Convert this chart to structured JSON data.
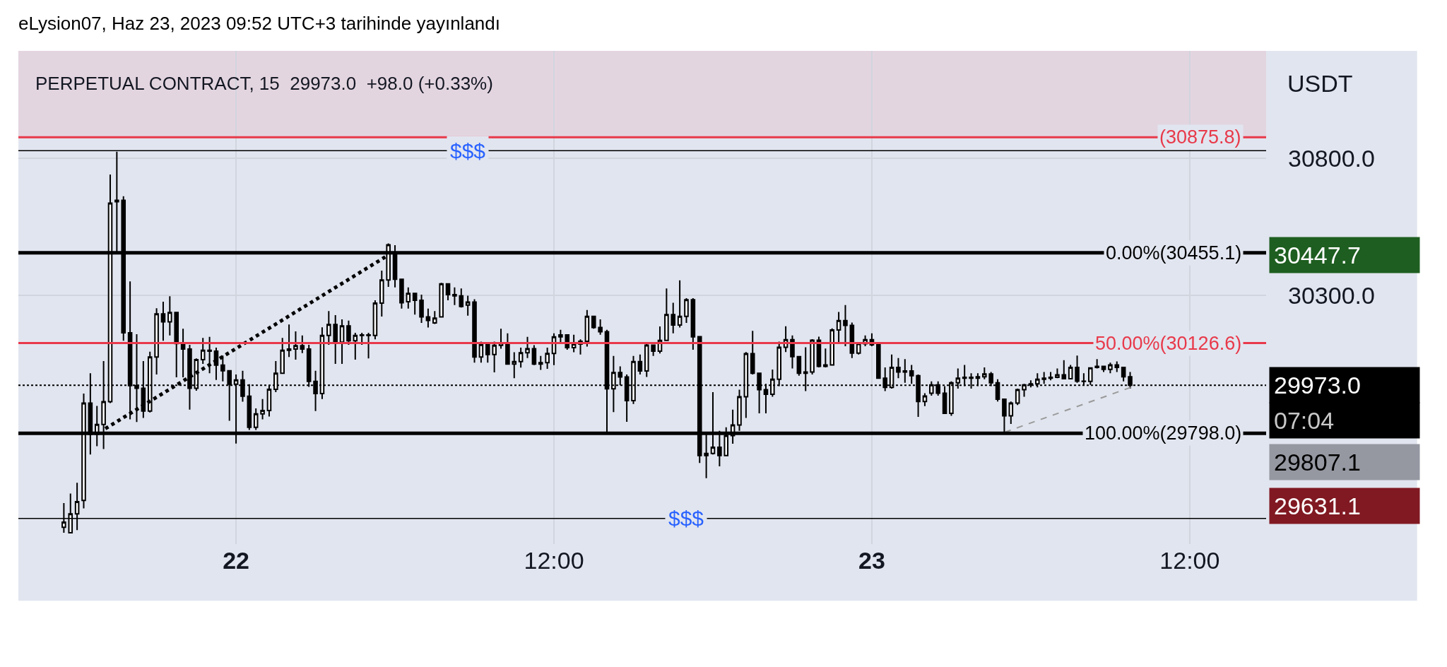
{
  "chart_data": {
    "type": "candlestick",
    "title": "PERPETUAL CONTRACT, 15  29973.0  +98.0 (+0.33%)",
    "ylabel": "USDT",
    "annotations": [
      "eLysion07, Haz 23, 2023 09:52 UTC+3 tarihinde yayınlandı",
      "30447.7",
      "07:04",
      "29807.1",
      "29631.1"
    ],
    "xlim": [
      "2023-06-21T15:47",
      "2023-06-23T14:53"
    ],
    "xticks": [
      {
        "value": "2023-06-22",
        "label": "22"
      },
      {
        "value": "2023-06-22T12:00",
        "label": "12:00"
      },
      {
        "value": "2023-06-23",
        "label": "23"
      },
      {
        "value": "2023-06-23T12:00",
        "label": "12:00"
      }
    ],
    "ylim": [
      29395,
      31190
    ],
    "yticks": [
      {
        "value": 30800,
        "label": "30800.0"
      },
      {
        "value": 30300,
        "label": "30300.0"
      }
    ],
    "grid": true,
    "series": [
      {
        "type": "line",
        "x": [
          "2023-06-21T19:04",
          "2023-06-22T05:38"
        ],
        "values": [
          29815,
          30440
        ],
        "color": "#000000",
        "line_style": "dotted"
      },
      {
        "type": "line",
        "x": [
          "2023-06-23T05:01",
          "2023-06-23T09:46"
        ],
        "values": [
          29802,
          29965
        ],
        "color": "#9a9a9a",
        "line_style": "dashed"
      },
      {
        "type": "candlestick",
        "color": "#000000",
        "x": [
          "2023-06-21T17:30",
          "2023-06-21T17:45",
          "2023-06-21T18:00",
          "2023-06-21T18:15",
          "2023-06-21T18:30",
          "2023-06-21T18:45",
          "2023-06-21T19:00",
          "2023-06-21T19:15",
          "2023-06-21T19:30",
          "2023-06-21T19:45",
          "2023-06-21T20:00",
          "2023-06-21T20:15",
          "2023-06-21T20:30",
          "2023-06-21T20:45",
          "2023-06-21T21:00",
          "2023-06-21T21:15",
          "2023-06-21T21:30",
          "2023-06-21T21:45",
          "2023-06-21T22:00",
          "2023-06-21T22:15",
          "2023-06-21T22:30",
          "2023-06-21T22:45",
          "2023-06-21T23:00",
          "2023-06-21T23:15",
          "2023-06-21T23:30",
          "2023-06-21T23:45",
          "2023-06-22T00:00",
          "2023-06-22T00:15",
          "2023-06-22T00:30",
          "2023-06-22T00:45",
          "2023-06-22T01:00",
          "2023-06-22T01:15",
          "2023-06-22T01:30",
          "2023-06-22T01:45",
          "2023-06-22T02:00",
          "2023-06-22T02:15",
          "2023-06-22T02:30",
          "2023-06-22T02:45",
          "2023-06-22T03:00",
          "2023-06-22T03:15",
          "2023-06-22T03:30",
          "2023-06-22T03:45",
          "2023-06-22T04:00",
          "2023-06-22T04:15",
          "2023-06-22T04:30",
          "2023-06-22T04:45",
          "2023-06-22T05:00",
          "2023-06-22T05:15",
          "2023-06-22T05:30",
          "2023-06-22T05:45",
          "2023-06-22T06:00",
          "2023-06-22T06:15",
          "2023-06-22T06:30",
          "2023-06-22T06:45",
          "2023-06-22T07:00",
          "2023-06-22T07:15",
          "2023-06-22T07:30",
          "2023-06-22T07:45",
          "2023-06-22T08:00",
          "2023-06-22T08:15",
          "2023-06-22T08:30",
          "2023-06-22T08:45",
          "2023-06-22T09:00",
          "2023-06-22T09:15",
          "2023-06-22T09:30",
          "2023-06-22T09:45",
          "2023-06-22T10:00",
          "2023-06-22T10:15",
          "2023-06-22T10:30",
          "2023-06-22T10:45",
          "2023-06-22T11:00",
          "2023-06-22T11:15",
          "2023-06-22T11:30",
          "2023-06-22T11:45",
          "2023-06-22T12:00",
          "2023-06-22T12:15",
          "2023-06-22T12:30",
          "2023-06-22T12:45",
          "2023-06-22T13:00",
          "2023-06-22T13:15",
          "2023-06-22T13:30",
          "2023-06-22T13:45",
          "2023-06-22T14:00",
          "2023-06-22T14:15",
          "2023-06-22T14:30",
          "2023-06-22T14:45",
          "2023-06-22T15:00",
          "2023-06-22T15:15",
          "2023-06-22T15:30",
          "2023-06-22T15:45",
          "2023-06-22T16:00",
          "2023-06-22T16:15",
          "2023-06-22T16:30",
          "2023-06-22T16:45",
          "2023-06-22T17:00",
          "2023-06-22T17:15",
          "2023-06-22T17:30",
          "2023-06-22T17:45",
          "2023-06-22T18:00",
          "2023-06-22T18:15",
          "2023-06-22T18:30",
          "2023-06-22T18:45",
          "2023-06-22T19:00",
          "2023-06-22T19:15",
          "2023-06-22T19:30",
          "2023-06-22T19:45",
          "2023-06-22T20:00",
          "2023-06-22T20:15",
          "2023-06-22T20:30",
          "2023-06-22T20:45",
          "2023-06-22T21:00",
          "2023-06-22T21:15",
          "2023-06-22T21:30",
          "2023-06-22T21:45",
          "2023-06-22T22:00",
          "2023-06-22T22:15",
          "2023-06-22T22:30",
          "2023-06-22T22:45",
          "2023-06-22T23:00",
          "2023-06-22T23:15",
          "2023-06-22T23:30",
          "2023-06-22T23:45",
          "2023-06-23T00:00",
          "2023-06-23T00:15",
          "2023-06-23T00:30",
          "2023-06-23T00:45",
          "2023-06-23T01:00",
          "2023-06-23T01:15",
          "2023-06-23T01:30",
          "2023-06-23T01:45",
          "2023-06-23T02:00",
          "2023-06-23T02:15",
          "2023-06-23T02:30",
          "2023-06-23T02:45",
          "2023-06-23T03:00",
          "2023-06-23T03:15",
          "2023-06-23T03:30",
          "2023-06-23T03:45",
          "2023-06-23T04:00",
          "2023-06-23T04:15",
          "2023-06-23T04:30",
          "2023-06-23T04:45",
          "2023-06-23T05:00",
          "2023-06-23T05:15",
          "2023-06-23T05:30",
          "2023-06-23T05:45",
          "2023-06-23T06:00",
          "2023-06-23T06:15",
          "2023-06-23T06:30",
          "2023-06-23T06:45",
          "2023-06-23T07:00",
          "2023-06-23T07:15",
          "2023-06-23T07:30",
          "2023-06-23T07:45",
          "2023-06-23T08:00",
          "2023-06-23T08:15",
          "2023-06-23T08:30",
          "2023-06-23T08:45",
          "2023-06-23T09:00",
          "2023-06-23T09:15",
          "2023-06-23T09:30",
          "2023-06-23T09:45"
        ],
        "ohlc": [
          [
            29456,
            29544,
            29436,
            29475
          ],
          [
            29436,
            29579,
            29436,
            29505
          ],
          [
            29505,
            29618,
            29446,
            29549
          ],
          [
            29554,
            29943,
            29525,
            29908
          ],
          [
            29908,
            30017,
            29721,
            29795
          ],
          [
            29795,
            29898,
            29751,
            29830
          ],
          [
            29830,
            30061,
            29741,
            29913
          ],
          [
            29913,
            30740,
            29908,
            30636
          ],
          [
            30641,
            30823,
            30450,
            30646
          ],
          [
            30646,
            30661,
            30135,
            30164
          ],
          [
            30164,
            30351,
            29849,
            29972
          ],
          [
            29972,
            30159,
            29839,
            29962
          ],
          [
            29962,
            30061,
            29854,
            29879
          ],
          [
            29879,
            30095,
            29874,
            30076
          ],
          [
            30076,
            30253,
            30012,
            30233
          ],
          [
            30233,
            30277,
            30135,
            30204
          ],
          [
            30204,
            30297,
            30154,
            30238
          ],
          [
            30238,
            30238,
            30002,
            30125
          ],
          [
            30125,
            30179,
            30002,
            30105
          ],
          [
            30105,
            30120,
            29884,
            29962
          ],
          [
            29962,
            30071,
            29953,
            30066
          ],
          [
            30066,
            30145,
            30051,
            30100
          ],
          [
            30100,
            30149,
            30017,
            30097
          ],
          [
            30097,
            30110,
            29992,
            30046
          ],
          [
            30046,
            30081,
            29987,
            30026
          ],
          [
            30026,
            30026,
            29844,
            29977
          ],
          [
            29977,
            30012,
            29761,
            29992
          ],
          [
            29992,
            30026,
            29913,
            29933
          ],
          [
            29933,
            29977,
            29810,
            29820
          ],
          [
            29820,
            29889,
            29810,
            29869
          ],
          [
            29869,
            29923,
            29849,
            29881
          ],
          [
            29881,
            29972,
            29859,
            29958
          ],
          [
            29958,
            30061,
            29948,
            30017
          ],
          [
            30017,
            30145,
            30017,
            30100
          ],
          [
            30100,
            30194,
            30076,
            30105
          ],
          [
            30105,
            30169,
            30066,
            30117
          ],
          [
            30117,
            30154,
            30090,
            30105
          ],
          [
            30105,
            30120,
            29967,
            29987
          ],
          [
            29987,
            30026,
            29879,
            29943
          ],
          [
            29943,
            30184,
            29923,
            30154
          ],
          [
            30154,
            30243,
            30120,
            30194
          ],
          [
            30194,
            30228,
            30051,
            30130
          ],
          [
            30130,
            30213,
            30051,
            30189
          ],
          [
            30189,
            30208,
            30120,
            30135
          ],
          [
            30135,
            30164,
            30066,
            30154
          ],
          [
            30154,
            30164,
            30120,
            30156
          ],
          [
            30156,
            30164,
            30071,
            30154
          ],
          [
            30154,
            30282,
            30140,
            30272
          ],
          [
            30272,
            30390,
            30223,
            30356
          ],
          [
            30356,
            30489,
            30331,
            30484
          ],
          [
            30453,
            30483,
            30329,
            30359
          ],
          [
            30359,
            30359,
            30252,
            30273
          ],
          [
            30277,
            30329,
            30252,
            30307
          ],
          [
            30307,
            30307,
            30230,
            30282
          ],
          [
            30282,
            30303,
            30200,
            30222
          ],
          [
            30222,
            30252,
            30183,
            30209
          ],
          [
            30200,
            30243,
            30196,
            30217
          ],
          [
            30222,
            30346,
            30222,
            30342
          ],
          [
            30342,
            30342,
            30282,
            30303
          ],
          [
            30303,
            30329,
            30265,
            30298
          ],
          [
            30298,
            30325,
            30256,
            30260
          ],
          [
            30265,
            30299,
            30226,
            30276
          ],
          [
            30276,
            30286,
            30055,
            30076
          ],
          [
            30076,
            30132,
            30055,
            30121
          ],
          [
            30121,
            30123,
            30055,
            30085
          ],
          [
            30085,
            30132,
            30020,
            30118
          ],
          [
            30118,
            30179,
            30106,
            30127
          ],
          [
            30127,
            30162,
            30050,
            30050
          ],
          [
            30050,
            30093,
            29999,
            30059
          ],
          [
            30059,
            30110,
            30037,
            30091
          ],
          [
            30091,
            30149,
            30072,
            30106
          ],
          [
            30106,
            30119,
            30046,
            30050
          ],
          [
            30050,
            30080,
            30029,
            30055
          ],
          [
            30055,
            30110,
            30033,
            30089
          ],
          [
            30089,
            30162,
            30046,
            30149
          ],
          [
            30149,
            30175,
            30123,
            30156
          ],
          [
            30156,
            30157,
            30102,
            30110
          ],
          [
            30110,
            30157,
            30093,
            30123
          ],
          [
            30123,
            30140,
            30085,
            30133
          ],
          [
            30133,
            30247,
            30114,
            30224
          ],
          [
            30224,
            30226,
            30179,
            30183
          ],
          [
            30183,
            30213,
            30157,
            30168
          ],
          [
            30168,
            30175,
            29797,
            29960
          ],
          [
            29960,
            30080,
            29875,
            30019
          ],
          [
            30019,
            30042,
            29973,
            30003
          ],
          [
            30003,
            30012,
            29840,
            29917
          ],
          [
            29917,
            30080,
            29905,
            30059
          ],
          [
            30059,
            30085,
            30012,
            30025
          ],
          [
            30025,
            30123,
            30003,
            30119
          ],
          [
            30119,
            30119,
            30080,
            30097
          ],
          [
            30097,
            30187,
            30089,
            30136
          ],
          [
            30136,
            30325,
            30136,
            30230
          ],
          [
            30230,
            30273,
            30162,
            30192
          ],
          [
            30192,
            30355,
            30183,
            30224
          ],
          [
            30224,
            30290,
            30200,
            30284
          ],
          [
            30284,
            30290,
            30102,
            30149
          ],
          [
            30150,
            30150,
            29690,
            29717
          ],
          [
            29717,
            29798,
            29635,
            29725
          ],
          [
            29725,
            29948,
            29721,
            29747
          ],
          [
            29747,
            29807,
            29678,
            29717
          ],
          [
            29717,
            29820,
            29717,
            29790
          ],
          [
            29790,
            29884,
            29760,
            29828
          ],
          [
            29828,
            29957,
            29807,
            29931
          ],
          [
            29931,
            30094,
            29854,
            30088
          ],
          [
            30088,
            30171,
            30012,
            30017
          ],
          [
            30017,
            30017,
            29871,
            29957
          ],
          [
            29957,
            29978,
            29871,
            29940
          ],
          [
            29940,
            30030,
            29931,
            29995
          ],
          [
            29995,
            30132,
            29970,
            30111
          ],
          [
            30111,
            30188,
            30094,
            30139
          ],
          [
            30139,
            30154,
            30034,
            30077
          ],
          [
            30077,
            30077,
            30008,
            30017
          ],
          [
            30017,
            30111,
            29952,
            30021
          ],
          [
            30021,
            30141,
            30012,
            30137
          ],
          [
            30137,
            30150,
            30038,
            30042
          ],
          [
            30042,
            30107,
            30038,
            30047
          ],
          [
            30047,
            30180,
            30047,
            30174
          ],
          [
            30174,
            30240,
            30124,
            30208
          ],
          [
            30208,
            30265,
            30115,
            30191
          ],
          [
            30191,
            30201,
            30072,
            30090
          ],
          [
            30090,
            30128,
            30085,
            30124
          ],
          [
            30124,
            30154,
            30115,
            30139
          ],
          [
            30139,
            30162,
            30115,
            30120
          ],
          [
            30120,
            30124,
            29999,
            29999
          ],
          [
            29999,
            30038,
            29952,
            29965
          ],
          [
            29965,
            30085,
            29961,
            30038
          ],
          [
            30038,
            30072,
            29999,
            30021
          ],
          [
            30021,
            30068,
            29982,
            30025
          ],
          [
            30025,
            30047,
            29978,
            30008
          ],
          [
            30008,
            30012,
            29858,
            29914
          ],
          [
            29914,
            29944,
            29897,
            29934
          ],
          [
            29944,
            29987,
            29935,
            29974
          ],
          [
            29974,
            29987,
            29935,
            29944
          ],
          [
            29944,
            29970,
            29871,
            29871
          ],
          [
            29871,
            29987,
            29862,
            29982
          ],
          [
            29982,
            30034,
            29961,
            29999
          ],
          [
            29999,
            30047,
            29970,
            30002
          ],
          [
            30002,
            30017,
            29961,
            29999
          ],
          [
            29999,
            30017,
            29970,
            30004
          ],
          [
            30004,
            30038,
            29995,
            30014
          ],
          [
            30014,
            30021,
            29970,
            29982
          ],
          [
            29982,
            29995,
            29914,
            29922
          ],
          [
            29922,
            29922,
            29798,
            29862
          ],
          [
            29862,
            29914,
            29832,
            29908
          ],
          [
            29908,
            29961,
            29901,
            29957
          ],
          [
            29957,
            29978,
            29931,
            29974
          ],
          [
            29974,
            29991,
            29965,
            29978
          ],
          [
            29978,
            30017,
            29965,
            29995
          ],
          [
            29995,
            30021,
            29978,
            29999
          ],
          [
            29999,
            30021,
            29991,
            30002
          ],
          [
            30002,
            30034,
            29999,
            30011
          ],
          [
            30011,
            30064,
            29995,
            29997
          ],
          [
            29997,
            30047,
            29995,
            30038
          ],
          [
            30038,
            30081,
            29982,
            29988
          ],
          [
            29988,
            30017,
            29974,
            29987
          ],
          [
            29987,
            30038,
            29974,
            30036
          ],
          [
            30038,
            30068,
            30034,
            30042
          ],
          [
            30042,
            30042,
            30021,
            30031
          ],
          [
            30031,
            30055,
            30017,
            30047
          ],
          [
            30047,
            30060,
            30021,
            30038
          ],
          [
            30038,
            30038,
            29987,
            30004
          ],
          [
            30004,
            30021,
            29961,
            29973
          ]
        ]
      }
    ],
    "ref_lines": [
      {
        "axis": "y",
        "value": 30875.8,
        "label": "(30875.8)",
        "color": "#e8394a",
        "line_style": "solid"
      },
      {
        "axis": "y",
        "value": 30827,
        "label": "$$$",
        "color": "#000000",
        "line_style": "solid"
      },
      {
        "axis": "y",
        "value": 30455.1,
        "label": "0.00%(30455.1)",
        "color": "#000000",
        "line_style": "solid"
      },
      {
        "axis": "y",
        "value": 30126.6,
        "label": "50.00%(30126.6)",
        "color": "#e8394a",
        "line_style": "solid"
      },
      {
        "axis": "y",
        "value": 29973.0,
        "label": "29973.0",
        "color": "#000000",
        "line_style": "dotted"
      },
      {
        "axis": "y",
        "value": 29798.0,
        "label": "100.00%(29798.0)",
        "color": "#000000",
        "line_style": "solid"
      },
      {
        "axis": "y",
        "value": 29488,
        "label": "$$$",
        "color": "#000000",
        "line_style": "solid"
      }
    ],
    "bands": [
      {
        "axis": "y",
        "from": 30875.8,
        "to": 31190,
        "color": "#e3d5e0"
      }
    ]
  }
}
